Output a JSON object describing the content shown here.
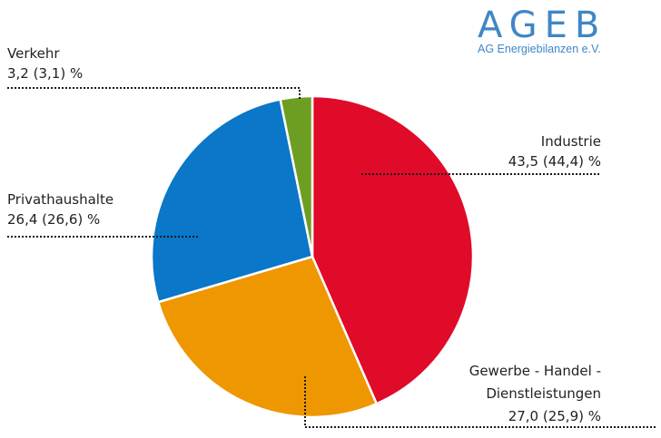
{
  "brand": {
    "name": "AGEB",
    "subtitle": "AG Energiebilanzen e.V."
  },
  "chart_data": {
    "type": "pie",
    "unit": "%",
    "slices": [
      {
        "name": "Industrie",
        "value": 43.5,
        "previous": 44.4,
        "label_line1": "Industrie",
        "label_line2": "43,5 (44,4) %",
        "color": "#e00a29"
      },
      {
        "name": "Gewerbe - Handel - Dienstleistungen",
        "value": 27.0,
        "previous": 25.9,
        "label_line1": "Gewerbe - Handel -",
        "label_line2": "Dienstleistungen",
        "label_line3": "27,0 (25,9) %",
        "color": "#ee9700"
      },
      {
        "name": "Privathaushalte",
        "value": 26.4,
        "previous": 26.6,
        "label_line1": "Privathaushalte",
        "label_line2": "26,4 (26,6) %",
        "color": "#0a77c8"
      },
      {
        "name": "Verkehr",
        "value": 3.2,
        "previous": 3.1,
        "label_line1": "Verkehr",
        "label_line2": "3,2 (3,1) %",
        "color": "#6d9e23"
      }
    ]
  }
}
